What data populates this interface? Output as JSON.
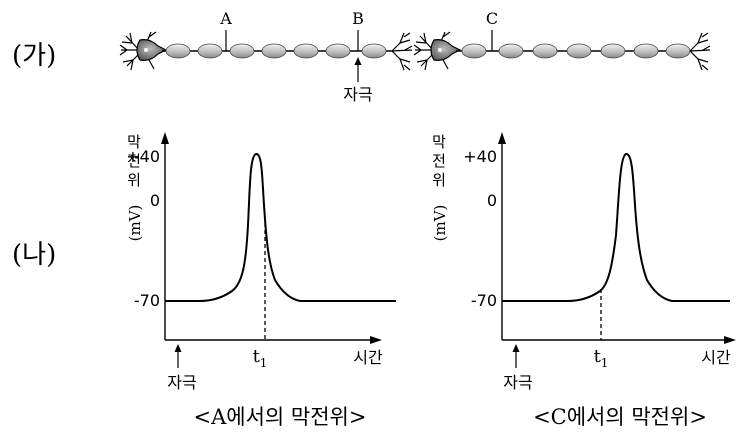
{
  "panel_ga": {
    "label": "(가)",
    "point_labels": [
      "A",
      "B",
      "C"
    ],
    "stimulus_label": "자극"
  },
  "panel_na": {
    "label": "(나)"
  },
  "chart_data": [
    {
      "type": "line",
      "title": "<A에서의 막전위>",
      "ylabel": [
        "막",
        "전",
        "위"
      ],
      "yunit": "(mV)",
      "yticks": [
        "+40",
        "0",
        "-70"
      ],
      "xlabel": "시간",
      "stimulus_label": "자극",
      "t_label": "t",
      "t_sub": "1",
      "resting_mV": -70,
      "peak_mV": 40
    },
    {
      "type": "line",
      "title": "<C에서의 막전위>",
      "ylabel": [
        "막",
        "전",
        "위"
      ],
      "yunit": "(mV)",
      "yticks": [
        "+40",
        "0",
        "-70"
      ],
      "xlabel": "시간",
      "stimulus_label": "자극",
      "t_label": "t",
      "t_sub": "1",
      "resting_mV": -70,
      "peak_mV": 40
    }
  ]
}
